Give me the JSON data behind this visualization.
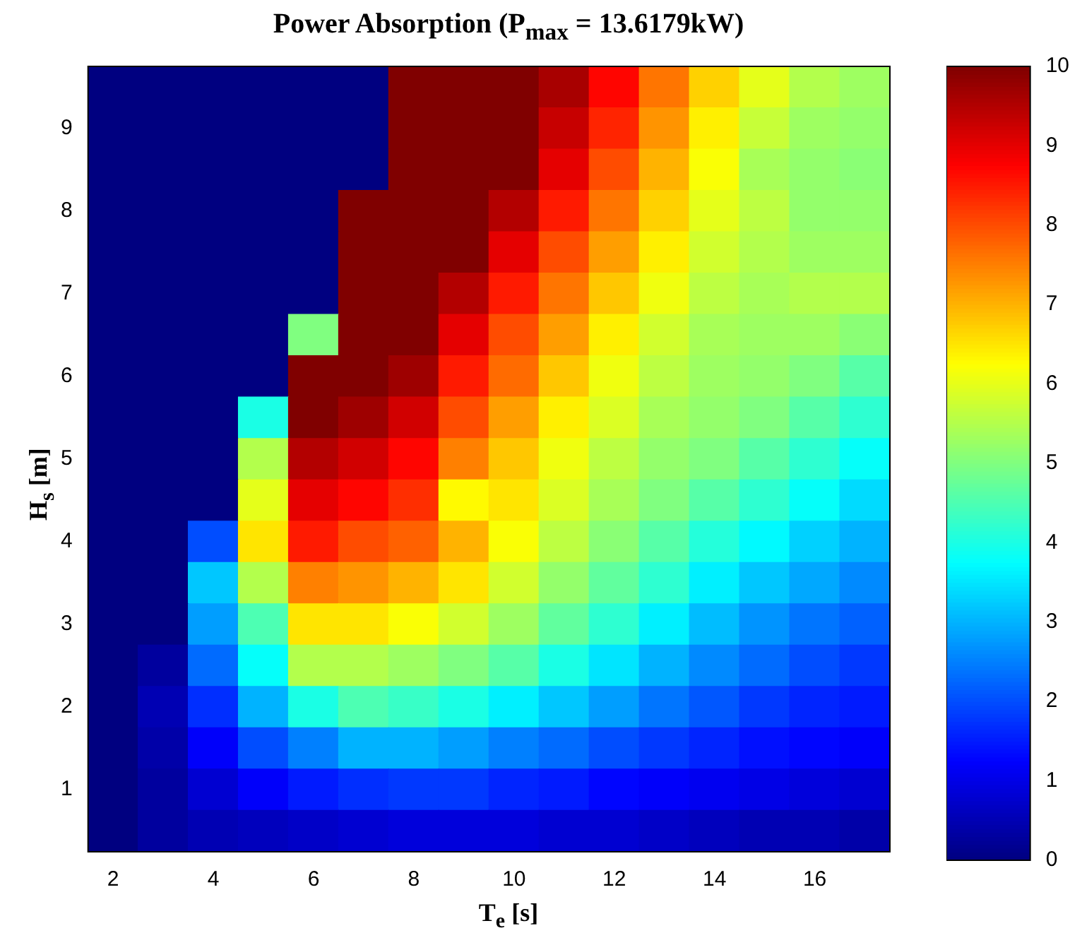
{
  "chart_data": {
    "type": "heatmap",
    "title": "Power Absorption (P$_{max}$ = 13.6179kW)",
    "xlabel": "T$_{e}$ [s]",
    "ylabel": "H$_{s}$ [m]",
    "categories": [
      "2",
      null,
      "4",
      null,
      "6",
      null,
      "8",
      null,
      "10",
      null,
      "12",
      null,
      "14",
      null,
      "16",
      null
    ],
    "y_categories": [
      null,
      "9",
      null,
      "8",
      null,
      "7",
      null,
      "6",
      null,
      "5",
      null,
      "4",
      null,
      "3",
      null,
      "2",
      null,
      "1",
      null
    ],
    "cells": [
      [
        0,
        0,
        0,
        0,
        0,
        0,
        10,
        10,
        10,
        9.6,
        8.7,
        7.6,
        6.7,
        6,
        5.5,
        5.3
      ],
      [
        0,
        0,
        0,
        0,
        0,
        0,
        10,
        10,
        10,
        9.3,
        8.4,
        7.3,
        6.4,
        5.7,
        5.3,
        5.2
      ],
      [
        0,
        0,
        0,
        0,
        0,
        0,
        10,
        10,
        10,
        9,
        8,
        7,
        6.2,
        5.4,
        5.2,
        5.1
      ],
      [
        0,
        0,
        0,
        0,
        0,
        10,
        10,
        10,
        9.5,
        8.5,
        7.6,
        6.7,
        6,
        5.6,
        5.2,
        5.2
      ],
      [
        0,
        0,
        0,
        0,
        0,
        10,
        10,
        10,
        9,
        8,
        7.2,
        6.4,
        5.8,
        5.5,
        5.3,
        5.3
      ],
      [
        0,
        0,
        0,
        0,
        0,
        10,
        10,
        9.5,
        8.5,
        7.6,
        6.8,
        6.1,
        5.6,
        5.4,
        5.5,
        5.5
      ],
      [
        0,
        0,
        0,
        0,
        5,
        10,
        10,
        9,
        8,
        7.2,
        6.4,
        5.8,
        5.4,
        5.3,
        5.3,
        5.1
      ],
      [
        0,
        0,
        0,
        0,
        10,
        10,
        9.7,
        8.5,
        7.7,
        6.8,
        6.1,
        5.6,
        5.3,
        5.2,
        5,
        4.6
      ],
      [
        0,
        0,
        0,
        4,
        10,
        9.7,
        9.2,
        8,
        7.2,
        6.4,
        5.9,
        5.4,
        5.2,
        5,
        4.6,
        4.2
      ],
      [
        0,
        0,
        0,
        5.5,
        9.5,
        9.2,
        8.7,
        7.5,
        6.8,
        6.1,
        5.6,
        5.2,
        5,
        4.6,
        4.2,
        3.8
      ],
      [
        0,
        0,
        0,
        6,
        9,
        8.7,
        8.3,
        6.3,
        6.5,
        5.9,
        5.4,
        5,
        4.6,
        4.2,
        3.8,
        3.4
      ],
      [
        0,
        0,
        2,
        6.5,
        8.5,
        8,
        7.8,
        7,
        6.2,
        5.6,
        5.1,
        4.6,
        4.1,
        3.7,
        3.3,
        3
      ],
      [
        0,
        0,
        3.2,
        5.5,
        7.5,
        7.3,
        7,
        6.5,
        5.8,
        5.2,
        4.7,
        4.2,
        3.6,
        3.2,
        2.9,
        2.6
      ],
      [
        0,
        0,
        2.8,
        4.5,
        6.5,
        6.5,
        6.2,
        5.8,
        5.3,
        4.7,
        4.2,
        3.6,
        3.1,
        2.7,
        2.4,
        2.2
      ],
      [
        0,
        0.3,
        2.3,
        3.8,
        5.5,
        5.5,
        5.3,
        5,
        4.6,
        4,
        3.5,
        3,
        2.6,
        2.3,
        2,
        1.8
      ],
      [
        0,
        0.5,
        1.7,
        3,
        4,
        4.5,
        4.3,
        4,
        3.6,
        3.2,
        2.8,
        2.4,
        2.1,
        1.8,
        1.6,
        1.5
      ],
      [
        0,
        0.4,
        1.2,
        2,
        2.5,
        3,
        3,
        2.8,
        2.5,
        2.3,
        2,
        1.8,
        1.6,
        1.4,
        1.3,
        1.2
      ],
      [
        0,
        0.3,
        0.8,
        1.2,
        1.5,
        1.7,
        1.8,
        1.8,
        1.6,
        1.5,
        1.3,
        1.2,
        1.1,
        1,
        0.9,
        0.8
      ],
      [
        0,
        0.3,
        0.5,
        0.6,
        0.7,
        0.8,
        0.9,
        0.9,
        0.9,
        0.8,
        0.8,
        0.7,
        0.6,
        0.5,
        0.5,
        0.4
      ]
    ],
    "clim": [
      0,
      10
    ],
    "cticks": [
      0,
      1,
      2,
      3,
      4,
      5,
      6,
      7,
      8,
      9,
      10
    ]
  }
}
